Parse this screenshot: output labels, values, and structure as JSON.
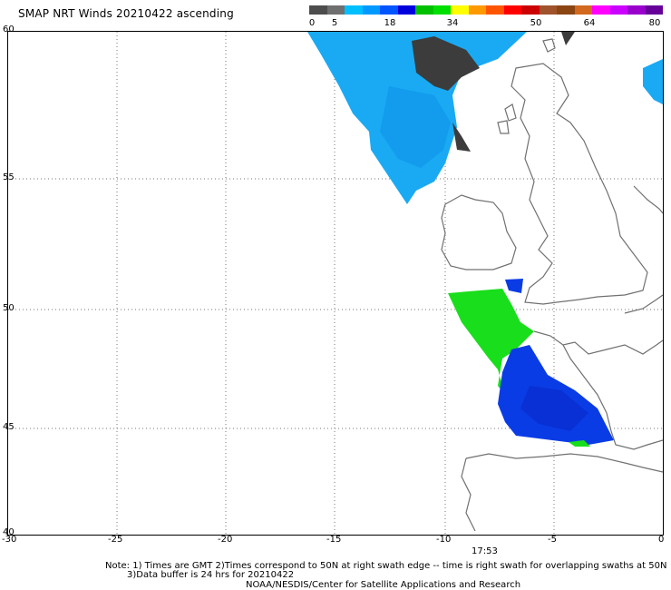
{
  "title": "SMAP NRT Winds 20210422 ascending",
  "colorbar": {
    "labels": [
      "0",
      "5",
      "18",
      "34",
      "50",
      "64",
      "80"
    ],
    "segments": [
      "#4d4d4d",
      "#6f6f6f",
      "#00bfff",
      "#0099ff",
      "#0055ff",
      "#0000dd",
      "#00c000",
      "#00e000",
      "#ffff00",
      "#ff9900",
      "#ff5500",
      "#ff0000",
      "#cc0000",
      "#a0522d",
      "#8b4513",
      "#d2691e",
      "#ff00ff",
      "#cc00ff",
      "#9900cc",
      "#660099"
    ]
  },
  "axes": {
    "lat_labels": [
      "60",
      "55",
      "50",
      "45",
      "40"
    ],
    "lon_labels": [
      "-30",
      "-25",
      "-20",
      "-15",
      "-10",
      "-5",
      "0"
    ]
  },
  "time_label": "17:53",
  "notes": {
    "line1": "Note: 1) Times are GMT 2)Times correspond to 50N at right swath edge -- time is right swath for overlapping swaths at 50N",
    "line2": "3)Data buffer is 24 hrs for 20210422",
    "line3": "NOAA/NESDIS/Center for Satellite Applications and Research"
  },
  "colors": {
    "light_blue": "#16a9f5",
    "dark_gray": "#3c3c3c",
    "green": "#17e01a",
    "blue": "#0a3ce6",
    "coast": "#707070"
  }
}
